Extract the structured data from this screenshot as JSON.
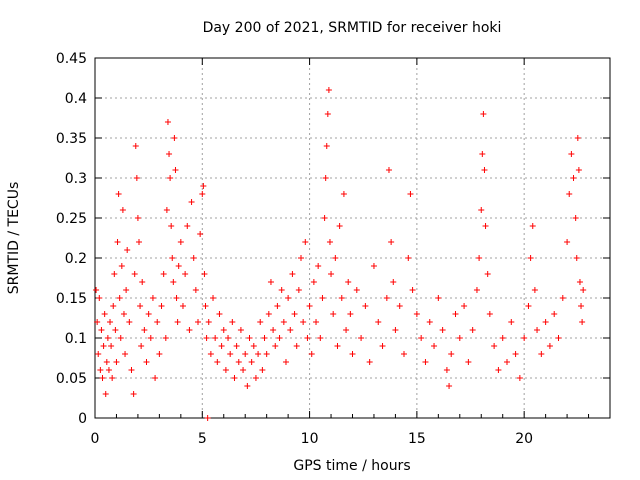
{
  "chart_data": {
    "type": "scatter",
    "title": "Day 200 of 2021, SRMTID for receiver hoki",
    "xlabel": "GPS time / hours",
    "ylabel": "SRMTID / TECUs",
    "xlim": [
      0,
      24
    ],
    "ylim": [
      0,
      0.45
    ],
    "x_ticks": [
      0,
      5,
      10,
      15,
      20
    ],
    "x_tick_labels": [
      "0",
      "5",
      "10",
      "15",
      "20"
    ],
    "y_ticks": [
      0,
      0.05,
      0.1,
      0.15,
      0.2,
      0.25,
      0.3,
      0.35,
      0.4,
      0.45
    ],
    "y_tick_labels": [
      "0",
      "0.05",
      "0.1",
      "0.15",
      "0.2",
      "0.25",
      "0.3",
      "0.35",
      "0.4",
      "0.45"
    ],
    "grid": true,
    "marker": "plus",
    "series_color": "#ff0000",
    "series": [
      {
        "name": "SRMTID",
        "points": [
          [
            0.05,
            0.16
          ],
          [
            0.1,
            0.12
          ],
          [
            0.15,
            0.08
          ],
          [
            0.2,
            0.15
          ],
          [
            0.25,
            0.06
          ],
          [
            0.3,
            0.11
          ],
          [
            0.35,
            0.05
          ],
          [
            0.4,
            0.09
          ],
          [
            0.45,
            0.13
          ],
          [
            0.5,
            0.03
          ],
          [
            0.55,
            0.07
          ],
          [
            0.6,
            0.1
          ],
          [
            0.65,
            0.06
          ],
          [
            0.7,
            0.12
          ],
          [
            0.75,
            0.09
          ],
          [
            0.8,
            0.05
          ],
          [
            0.85,
            0.14
          ],
          [
            0.9,
            0.18
          ],
          [
            0.95,
            0.11
          ],
          [
            1.0,
            0.07
          ],
          [
            1.05,
            0.22
          ],
          [
            1.1,
            0.28
          ],
          [
            1.15,
            0.15
          ],
          [
            1.2,
            0.1
          ],
          [
            1.25,
            0.19
          ],
          [
            1.3,
            0.26
          ],
          [
            1.35,
            0.13
          ],
          [
            1.4,
            0.08
          ],
          [
            1.45,
            0.16
          ],
          [
            1.5,
            0.21
          ],
          [
            1.6,
            0.12
          ],
          [
            1.7,
            0.06
          ],
          [
            1.8,
            0.03
          ],
          [
            1.85,
            0.18
          ],
          [
            1.9,
            0.34
          ],
          [
            1.95,
            0.3
          ],
          [
            2.0,
            0.25
          ],
          [
            2.05,
            0.22
          ],
          [
            2.1,
            0.14
          ],
          [
            2.15,
            0.09
          ],
          [
            2.2,
            0.17
          ],
          [
            2.3,
            0.11
          ],
          [
            2.4,
            0.07
          ],
          [
            2.5,
            0.13
          ],
          [
            2.6,
            0.1
          ],
          [
            2.7,
            0.15
          ],
          [
            2.8,
            0.05
          ],
          [
            2.9,
            0.12
          ],
          [
            3.0,
            0.08
          ],
          [
            3.1,
            0.14
          ],
          [
            3.2,
            0.18
          ],
          [
            3.3,
            0.1
          ],
          [
            3.35,
            0.26
          ],
          [
            3.4,
            0.37
          ],
          [
            3.45,
            0.33
          ],
          [
            3.5,
            0.3
          ],
          [
            3.55,
            0.24
          ],
          [
            3.6,
            0.2
          ],
          [
            3.65,
            0.17
          ],
          [
            3.7,
            0.35
          ],
          [
            3.75,
            0.31
          ],
          [
            3.8,
            0.15
          ],
          [
            3.85,
            0.12
          ],
          [
            3.9,
            0.19
          ],
          [
            4.0,
            0.22
          ],
          [
            4.1,
            0.14
          ],
          [
            4.2,
            0.18
          ],
          [
            4.3,
            0.24
          ],
          [
            4.4,
            0.11
          ],
          [
            4.5,
            0.27
          ],
          [
            4.6,
            0.2
          ],
          [
            4.7,
            0.16
          ],
          [
            4.8,
            0.12
          ],
          [
            4.9,
            0.23
          ],
          [
            5.0,
            0.28
          ],
          [
            5.05,
            0.29
          ],
          [
            5.1,
            0.18
          ],
          [
            5.15,
            0.14
          ],
          [
            5.2,
            0.1
          ],
          [
            5.25,
            0.0
          ],
          [
            5.3,
            0.12
          ],
          [
            5.4,
            0.08
          ],
          [
            5.5,
            0.15
          ],
          [
            5.6,
            0.1
          ],
          [
            5.7,
            0.07
          ],
          [
            5.8,
            0.13
          ],
          [
            5.9,
            0.09
          ],
          [
            6.0,
            0.11
          ],
          [
            6.1,
            0.06
          ],
          [
            6.2,
            0.1
          ],
          [
            6.3,
            0.08
          ],
          [
            6.4,
            0.12
          ],
          [
            6.5,
            0.05
          ],
          [
            6.6,
            0.09
          ],
          [
            6.7,
            0.07
          ],
          [
            6.8,
            0.11
          ],
          [
            6.9,
            0.06
          ],
          [
            7.0,
            0.08
          ],
          [
            7.1,
            0.04
          ],
          [
            7.2,
            0.1
          ],
          [
            7.3,
            0.07
          ],
          [
            7.4,
            0.09
          ],
          [
            7.5,
            0.05
          ],
          [
            7.6,
            0.08
          ],
          [
            7.7,
            0.12
          ],
          [
            7.8,
            0.06
          ],
          [
            7.9,
            0.1
          ],
          [
            8.0,
            0.08
          ],
          [
            8.1,
            0.13
          ],
          [
            8.2,
            0.17
          ],
          [
            8.3,
            0.11
          ],
          [
            8.4,
            0.09
          ],
          [
            8.5,
            0.14
          ],
          [
            8.6,
            0.1
          ],
          [
            8.7,
            0.16
          ],
          [
            8.8,
            0.12
          ],
          [
            8.9,
            0.07
          ],
          [
            9.0,
            0.15
          ],
          [
            9.1,
            0.11
          ],
          [
            9.2,
            0.18
          ],
          [
            9.3,
            0.13
          ],
          [
            9.4,
            0.09
          ],
          [
            9.5,
            0.16
          ],
          [
            9.6,
            0.2
          ],
          [
            9.7,
            0.12
          ],
          [
            9.8,
            0.22
          ],
          [
            9.9,
            0.1
          ],
          [
            10.0,
            0.14
          ],
          [
            10.1,
            0.08
          ],
          [
            10.2,
            0.17
          ],
          [
            10.3,
            0.12
          ],
          [
            10.4,
            0.19
          ],
          [
            10.5,
            0.1
          ],
          [
            10.6,
            0.15
          ],
          [
            10.7,
            0.25
          ],
          [
            10.75,
            0.3
          ],
          [
            10.8,
            0.34
          ],
          [
            10.85,
            0.38
          ],
          [
            10.9,
            0.41
          ],
          [
            10.95,
            0.22
          ],
          [
            11.0,
            0.18
          ],
          [
            11.1,
            0.13
          ],
          [
            11.2,
            0.2
          ],
          [
            11.3,
            0.09
          ],
          [
            11.4,
            0.24
          ],
          [
            11.5,
            0.15
          ],
          [
            11.6,
            0.28
          ],
          [
            11.7,
            0.11
          ],
          [
            11.8,
            0.17
          ],
          [
            11.9,
            0.13
          ],
          [
            12.0,
            0.08
          ],
          [
            12.2,
            0.16
          ],
          [
            12.4,
            0.1
          ],
          [
            12.6,
            0.14
          ],
          [
            12.8,
            0.07
          ],
          [
            13.0,
            0.19
          ],
          [
            13.2,
            0.12
          ],
          [
            13.4,
            0.09
          ],
          [
            13.6,
            0.15
          ],
          [
            13.7,
            0.31
          ],
          [
            13.8,
            0.22
          ],
          [
            13.9,
            0.17
          ],
          [
            14.0,
            0.11
          ],
          [
            14.2,
            0.14
          ],
          [
            14.4,
            0.08
          ],
          [
            14.6,
            0.2
          ],
          [
            14.7,
            0.28
          ],
          [
            14.8,
            0.16
          ],
          [
            15.0,
            0.13
          ],
          [
            15.2,
            0.1
          ],
          [
            15.4,
            0.07
          ],
          [
            15.6,
            0.12
          ],
          [
            15.8,
            0.09
          ],
          [
            16.0,
            0.15
          ],
          [
            16.2,
            0.11
          ],
          [
            16.4,
            0.06
          ],
          [
            16.5,
            0.04
          ],
          [
            16.6,
            0.08
          ],
          [
            16.8,
            0.13
          ],
          [
            17.0,
            0.1
          ],
          [
            17.2,
            0.14
          ],
          [
            17.4,
            0.07
          ],
          [
            17.6,
            0.11
          ],
          [
            17.8,
            0.16
          ],
          [
            17.9,
            0.2
          ],
          [
            18.0,
            0.26
          ],
          [
            18.05,
            0.33
          ],
          [
            18.1,
            0.38
          ],
          [
            18.15,
            0.31
          ],
          [
            18.2,
            0.24
          ],
          [
            18.3,
            0.18
          ],
          [
            18.4,
            0.13
          ],
          [
            18.6,
            0.09
          ],
          [
            18.8,
            0.06
          ],
          [
            19.0,
            0.1
          ],
          [
            19.2,
            0.07
          ],
          [
            19.4,
            0.12
          ],
          [
            19.6,
            0.08
          ],
          [
            19.8,
            0.05
          ],
          [
            20.0,
            0.1
          ],
          [
            20.2,
            0.14
          ],
          [
            20.3,
            0.2
          ],
          [
            20.4,
            0.24
          ],
          [
            20.5,
            0.16
          ],
          [
            20.6,
            0.11
          ],
          [
            20.8,
            0.08
          ],
          [
            21.0,
            0.12
          ],
          [
            21.2,
            0.09
          ],
          [
            21.4,
            0.13
          ],
          [
            21.6,
            0.1
          ],
          [
            21.8,
            0.15
          ],
          [
            22.0,
            0.22
          ],
          [
            22.1,
            0.28
          ],
          [
            22.2,
            0.33
          ],
          [
            22.3,
            0.3
          ],
          [
            22.4,
            0.25
          ],
          [
            22.45,
            0.2
          ],
          [
            22.5,
            0.35
          ],
          [
            22.55,
            0.31
          ],
          [
            22.6,
            0.17
          ],
          [
            22.65,
            0.14
          ],
          [
            22.7,
            0.12
          ],
          [
            22.75,
            0.16
          ]
        ]
      }
    ]
  }
}
